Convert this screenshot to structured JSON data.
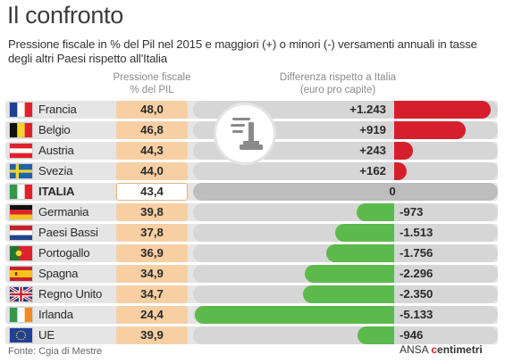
{
  "title": "Il confronto",
  "subtitle": "Pressione fiscale in % del Pil nel 2015 e maggiori (+) o minori (-) versamenti annuali in tasse degli altri Paesi rispetto all'Italia",
  "column_headers": {
    "pil": "Pressione fiscale\n% del PIL",
    "diff": "Differenza rispetto a Italia\n(euro pro capite)"
  },
  "source": "Fonte: Cgia di Mestre",
  "credit": {
    "prefix": "ANSA",
    "brand": "centimetri"
  },
  "colors": {
    "positive_bar": "#d61f2c",
    "negative_bar": "#5cb94b",
    "pil_box": "#f7cfa3",
    "track": "#d6d6d6"
  },
  "icon": "tax-stamp-icon",
  "chart_data": {
    "type": "bar",
    "categories": [
      "Francia",
      "Belgio",
      "Austria",
      "Svezia",
      "ITALIA",
      "Germania",
      "Paesi Bassi",
      "Portogallo",
      "Spagna",
      "Regno Unito",
      "Irlanda",
      "UE"
    ],
    "series": [
      {
        "name": "Pressione fiscale % del PIL",
        "values": [
          "48,0",
          "46,8",
          "44,3",
          "44,0",
          "43,4",
          "39,8",
          "37,8",
          "36,9",
          "34,9",
          "34,7",
          "24,4",
          "39,9"
        ]
      },
      {
        "name": "Differenza rispetto a Italia (euro pro capite)",
        "values": [
          1243,
          919,
          243,
          162,
          0,
          -973,
          -1513,
          -1756,
          -2296,
          -2350,
          -5133,
          -946
        ],
        "labels": [
          "+1.243",
          "+919",
          "+243",
          "+162",
          "0",
          "-973",
          "-1.513",
          "-1.756",
          "-2.296",
          "-2.350",
          "-5.133",
          "-946"
        ]
      }
    ],
    "flags": [
      "france-flag-icon",
      "belgium-flag-icon",
      "austria-flag-icon",
      "sweden-flag-icon",
      "italy-flag-icon",
      "germany-flag-icon",
      "netherlands-flag-icon",
      "portugal-flag-icon",
      "spain-flag-icon",
      "uk-flag-icon",
      "ireland-flag-icon",
      "eu-flag-icon"
    ],
    "highlight": "ITALIA"
  }
}
